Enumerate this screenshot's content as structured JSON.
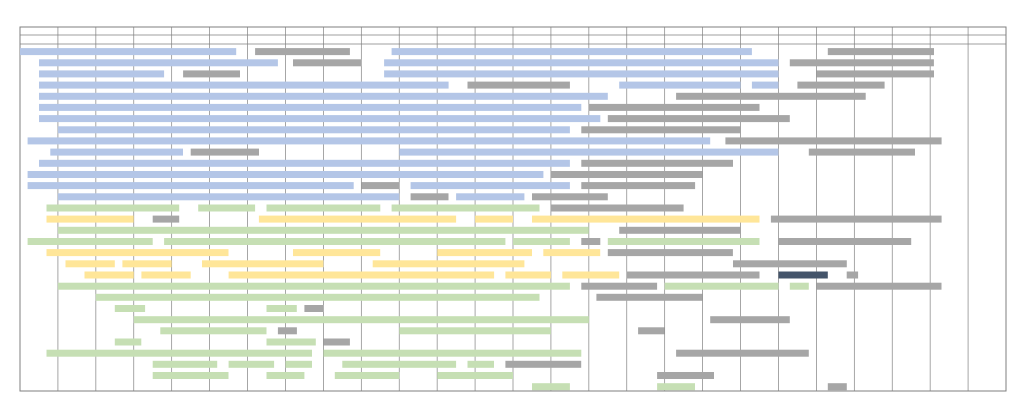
{
  "chart_data": {
    "type": "gantt",
    "title": "",
    "xlabel": "",
    "ylabel": "",
    "column_count": 26,
    "row_count": 31,
    "legend": [],
    "colors": {
      "blue": "#b4c6e7",
      "gray": "#a6a6a6",
      "green": "#c6dfb4",
      "yellow": "#ffe699",
      "navy": "#44546a",
      "grid": "#808080",
      "frame": "#7f7f7f"
    },
    "bars": [
      {
        "row": 0,
        "start": 0.0,
        "end": 5.7,
        "color": "blue"
      },
      {
        "row": 0,
        "start": 6.2,
        "end": 8.7,
        "color": "gray"
      },
      {
        "row": 0,
        "start": 9.8,
        "end": 19.3,
        "color": "blue"
      },
      {
        "row": 0,
        "start": 21.3,
        "end": 24.1,
        "color": "gray"
      },
      {
        "row": 1,
        "start": 0.5,
        "end": 6.8,
        "color": "blue"
      },
      {
        "row": 1,
        "start": 7.2,
        "end": 9.0,
        "color": "gray"
      },
      {
        "row": 1,
        "start": 9.6,
        "end": 20.0,
        "color": "blue"
      },
      {
        "row": 1,
        "start": 20.3,
        "end": 24.1,
        "color": "gray"
      },
      {
        "row": 2,
        "start": 0.5,
        "end": 3.8,
        "color": "blue"
      },
      {
        "row": 2,
        "start": 4.3,
        "end": 5.8,
        "color": "gray"
      },
      {
        "row": 2,
        "start": 9.6,
        "end": 20.0,
        "color": "blue"
      },
      {
        "row": 2,
        "start": 21.0,
        "end": 24.1,
        "color": "gray"
      },
      {
        "row": 3,
        "start": 0.5,
        "end": 11.3,
        "color": "blue"
      },
      {
        "row": 3,
        "start": 11.8,
        "end": 14.5,
        "color": "gray"
      },
      {
        "row": 3,
        "start": 15.8,
        "end": 19.0,
        "color": "blue"
      },
      {
        "row": 3,
        "start": 19.3,
        "end": 20.0,
        "color": "blue"
      },
      {
        "row": 3,
        "start": 20.5,
        "end": 22.8,
        "color": "gray"
      },
      {
        "row": 4,
        "start": 0.5,
        "end": 15.5,
        "color": "blue"
      },
      {
        "row": 4,
        "start": 17.3,
        "end": 22.3,
        "color": "gray"
      },
      {
        "row": 5,
        "start": 0.5,
        "end": 14.8,
        "color": "blue"
      },
      {
        "row": 5,
        "start": 15.0,
        "end": 19.5,
        "color": "gray"
      },
      {
        "row": 6,
        "start": 0.5,
        "end": 15.3,
        "color": "blue"
      },
      {
        "row": 6,
        "start": 15.5,
        "end": 20.3,
        "color": "gray"
      },
      {
        "row": 7,
        "start": 1.0,
        "end": 14.5,
        "color": "blue"
      },
      {
        "row": 7,
        "start": 14.8,
        "end": 19.0,
        "color": "gray"
      },
      {
        "row": 8,
        "start": 0.2,
        "end": 18.2,
        "color": "blue"
      },
      {
        "row": 8,
        "start": 18.6,
        "end": 24.3,
        "color": "gray"
      },
      {
        "row": 9,
        "start": 0.8,
        "end": 4.3,
        "color": "blue"
      },
      {
        "row": 9,
        "start": 4.5,
        "end": 6.3,
        "color": "gray"
      },
      {
        "row": 9,
        "start": 10.0,
        "end": 20.0,
        "color": "blue"
      },
      {
        "row": 9,
        "start": 20.8,
        "end": 23.6,
        "color": "gray"
      },
      {
        "row": 10,
        "start": 0.5,
        "end": 14.5,
        "color": "blue"
      },
      {
        "row": 10,
        "start": 14.8,
        "end": 18.8,
        "color": "gray"
      },
      {
        "row": 11,
        "start": 0.2,
        "end": 13.8,
        "color": "blue"
      },
      {
        "row": 11,
        "start": 14.0,
        "end": 18.0,
        "color": "gray"
      },
      {
        "row": 12,
        "start": 0.2,
        "end": 8.8,
        "color": "blue"
      },
      {
        "row": 12,
        "start": 9.0,
        "end": 10.0,
        "color": "gray"
      },
      {
        "row": 12,
        "start": 10.3,
        "end": 14.5,
        "color": "blue"
      },
      {
        "row": 12,
        "start": 14.8,
        "end": 17.8,
        "color": "gray"
      },
      {
        "row": 13,
        "start": 1.0,
        "end": 10.0,
        "color": "blue"
      },
      {
        "row": 13,
        "start": 10.3,
        "end": 11.3,
        "color": "gray"
      },
      {
        "row": 13,
        "start": 11.5,
        "end": 13.3,
        "color": "blue"
      },
      {
        "row": 13,
        "start": 13.5,
        "end": 15.5,
        "color": "gray"
      },
      {
        "row": 14,
        "start": 0.7,
        "end": 4.2,
        "color": "green"
      },
      {
        "row": 14,
        "start": 4.7,
        "end": 6.2,
        "color": "green"
      },
      {
        "row": 14,
        "start": 6.5,
        "end": 9.5,
        "color": "green"
      },
      {
        "row": 14,
        "start": 9.8,
        "end": 13.7,
        "color": "green"
      },
      {
        "row": 14,
        "start": 14.0,
        "end": 17.5,
        "color": "gray"
      },
      {
        "row": 15,
        "start": 0.7,
        "end": 3.0,
        "color": "yellow"
      },
      {
        "row": 15,
        "start": 3.5,
        "end": 4.2,
        "color": "gray"
      },
      {
        "row": 15,
        "start": 6.3,
        "end": 11.5,
        "color": "yellow"
      },
      {
        "row": 15,
        "start": 12.0,
        "end": 13.0,
        "color": "yellow"
      },
      {
        "row": 15,
        "start": 13.5,
        "end": 19.5,
        "color": "yellow"
      },
      {
        "row": 15,
        "start": 19.8,
        "end": 24.3,
        "color": "gray"
      },
      {
        "row": 16,
        "start": 1.0,
        "end": 15.0,
        "color": "green"
      },
      {
        "row": 16,
        "start": 15.8,
        "end": 19.0,
        "color": "gray"
      },
      {
        "row": 17,
        "start": 0.2,
        "end": 3.5,
        "color": "green"
      },
      {
        "row": 17,
        "start": 3.8,
        "end": 12.8,
        "color": "green"
      },
      {
        "row": 17,
        "start": 13.0,
        "end": 14.5,
        "color": "green"
      },
      {
        "row": 17,
        "start": 14.8,
        "end": 15.3,
        "color": "gray"
      },
      {
        "row": 17,
        "start": 15.5,
        "end": 19.5,
        "color": "green"
      },
      {
        "row": 17,
        "start": 20.0,
        "end": 23.5,
        "color": "gray"
      },
      {
        "row": 18,
        "start": 0.7,
        "end": 5.5,
        "color": "yellow"
      },
      {
        "row": 18,
        "start": 7.2,
        "end": 9.5,
        "color": "yellow"
      },
      {
        "row": 18,
        "start": 11.0,
        "end": 13.5,
        "color": "yellow"
      },
      {
        "row": 18,
        "start": 13.8,
        "end": 15.3,
        "color": "yellow"
      },
      {
        "row": 18,
        "start": 15.5,
        "end": 18.8,
        "color": "gray"
      },
      {
        "row": 19,
        "start": 1.2,
        "end": 2.5,
        "color": "yellow"
      },
      {
        "row": 19,
        "start": 2.7,
        "end": 4.0,
        "color": "yellow"
      },
      {
        "row": 19,
        "start": 4.8,
        "end": 8.0,
        "color": "yellow"
      },
      {
        "row": 19,
        "start": 9.3,
        "end": 13.3,
        "color": "yellow"
      },
      {
        "row": 19,
        "start": 18.8,
        "end": 21.8,
        "color": "gray"
      },
      {
        "row": 20,
        "start": 1.7,
        "end": 3.0,
        "color": "yellow"
      },
      {
        "row": 20,
        "start": 3.2,
        "end": 4.5,
        "color": "yellow"
      },
      {
        "row": 20,
        "start": 5.5,
        "end": 12.5,
        "color": "yellow"
      },
      {
        "row": 20,
        "start": 12.8,
        "end": 14.0,
        "color": "yellow"
      },
      {
        "row": 20,
        "start": 14.3,
        "end": 15.8,
        "color": "yellow"
      },
      {
        "row": 20,
        "start": 16.0,
        "end": 19.5,
        "color": "gray"
      },
      {
        "row": 20,
        "start": 20.0,
        "end": 21.3,
        "color": "navy"
      },
      {
        "row": 20,
        "start": 21.8,
        "end": 22.1,
        "color": "gray"
      },
      {
        "row": 21,
        "start": 1.0,
        "end": 14.5,
        "color": "green"
      },
      {
        "row": 21,
        "start": 14.8,
        "end": 16.8,
        "color": "gray"
      },
      {
        "row": 21,
        "start": 17.0,
        "end": 20.0,
        "color": "green"
      },
      {
        "row": 21,
        "start": 20.3,
        "end": 20.8,
        "color": "green"
      },
      {
        "row": 21,
        "start": 21.0,
        "end": 24.3,
        "color": "gray"
      },
      {
        "row": 22,
        "start": 2.0,
        "end": 13.7,
        "color": "green"
      },
      {
        "row": 22,
        "start": 15.2,
        "end": 18.0,
        "color": "gray"
      },
      {
        "row": 23,
        "start": 2.5,
        "end": 3.3,
        "color": "green"
      },
      {
        "row": 23,
        "start": 6.5,
        "end": 7.3,
        "color": "green"
      },
      {
        "row": 23,
        "start": 7.5,
        "end": 8.0,
        "color": "gray"
      },
      {
        "row": 24,
        "start": 3.0,
        "end": 15.0,
        "color": "green"
      },
      {
        "row": 24,
        "start": 18.2,
        "end": 20.3,
        "color": "gray"
      },
      {
        "row": 25,
        "start": 3.7,
        "end": 6.5,
        "color": "green"
      },
      {
        "row": 25,
        "start": 6.8,
        "end": 7.3,
        "color": "gray"
      },
      {
        "row": 25,
        "start": 10.0,
        "end": 14.0,
        "color": "green"
      },
      {
        "row": 25,
        "start": 16.3,
        "end": 17.0,
        "color": "gray"
      },
      {
        "row": 26,
        "start": 2.5,
        "end": 3.2,
        "color": "green"
      },
      {
        "row": 26,
        "start": 6.5,
        "end": 7.8,
        "color": "green"
      },
      {
        "row": 26,
        "start": 8.0,
        "end": 8.7,
        "color": "gray"
      },
      {
        "row": 27,
        "start": 0.7,
        "end": 7.7,
        "color": "green"
      },
      {
        "row": 27,
        "start": 8.0,
        "end": 14.8,
        "color": "green"
      },
      {
        "row": 27,
        "start": 17.3,
        "end": 20.8,
        "color": "gray"
      },
      {
        "row": 28,
        "start": 3.5,
        "end": 5.2,
        "color": "green"
      },
      {
        "row": 28,
        "start": 5.5,
        "end": 6.7,
        "color": "green"
      },
      {
        "row": 28,
        "start": 7.0,
        "end": 7.7,
        "color": "green"
      },
      {
        "row": 28,
        "start": 8.5,
        "end": 11.5,
        "color": "green"
      },
      {
        "row": 28,
        "start": 11.8,
        "end": 12.5,
        "color": "green"
      },
      {
        "row": 28,
        "start": 12.8,
        "end": 14.8,
        "color": "gray"
      },
      {
        "row": 29,
        "start": 3.5,
        "end": 5.5,
        "color": "green"
      },
      {
        "row": 29,
        "start": 6.5,
        "end": 7.5,
        "color": "green"
      },
      {
        "row": 29,
        "start": 8.3,
        "end": 10.0,
        "color": "green"
      },
      {
        "row": 29,
        "start": 11.0,
        "end": 13.0,
        "color": "green"
      },
      {
        "row": 29,
        "start": 16.8,
        "end": 18.3,
        "color": "gray"
      },
      {
        "row": 30,
        "start": 13.5,
        "end": 14.5,
        "color": "green"
      },
      {
        "row": 30,
        "start": 16.8,
        "end": 17.8,
        "color": "green"
      },
      {
        "row": 30,
        "start": 21.3,
        "end": 21.8,
        "color": "gray"
      }
    ]
  }
}
